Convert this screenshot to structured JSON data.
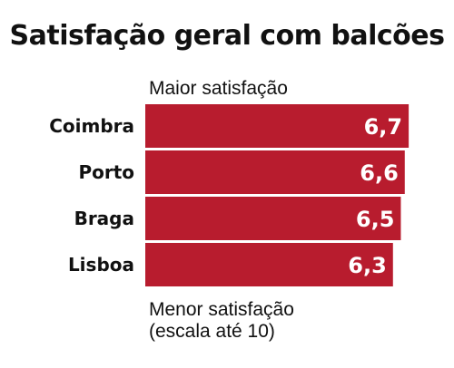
{
  "chart_data": {
    "type": "bar",
    "orientation": "horizontal",
    "title": "Satisfação geral com balcões",
    "top_note": "Maior satisfação",
    "bottom_note_lines": [
      "Menor satisfação",
      "(escala até 10)"
    ],
    "categories": [
      "Coimbra",
      "Porto",
      "Braga",
      "Lisboa"
    ],
    "values": [
      6.7,
      6.6,
      6.5,
      6.3
    ],
    "value_labels": [
      "6,7",
      "6,6",
      "6,5",
      "6,3"
    ],
    "xlim": [
      0,
      10
    ],
    "bar_color": "#b81c2e",
    "grid": false,
    "legend": "none"
  }
}
